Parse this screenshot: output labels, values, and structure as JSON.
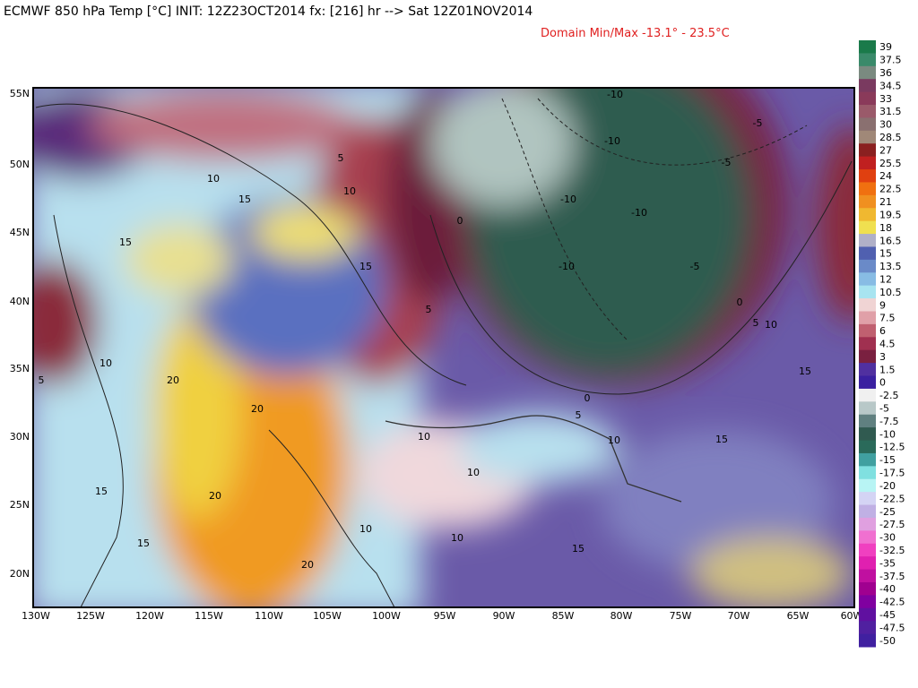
{
  "header": {
    "title": "ECMWF 850 hPa Temp [°C] INIT: 12Z23OCT2014 fx: [216] hr --> Sat 12Z01NOV2014",
    "subtitle": "Domain Min/Max -13.1° -  23.5°C"
  },
  "map": {
    "lat_labels": [
      "55N",
      "50N",
      "45N",
      "40N",
      "35N",
      "30N",
      "25N",
      "20N"
    ],
    "lon_labels": [
      "130W",
      "125W",
      "120W",
      "115W",
      "110W",
      "105W",
      "100W",
      "95W",
      "90W",
      "85W",
      "80W",
      "75W",
      "70W",
      "65W",
      "60W"
    ],
    "contour_labels": [
      "-10",
      "-5",
      "-10",
      "-5",
      "5",
      "10",
      "10",
      "15",
      "-10",
      "-10",
      "0",
      "15",
      "15",
      "-10",
      "-5",
      "5",
      "0",
      "5",
      "10",
      "10",
      "5",
      "20",
      "15",
      "0",
      "5",
      "20",
      "10",
      "10",
      "15",
      "10",
      "15",
      "20",
      "10",
      "10",
      "15",
      "15",
      "20"
    ]
  },
  "colorbar": {
    "labels": [
      "39",
      "37.5",
      "36",
      "34.5",
      "33",
      "31.5",
      "30",
      "28.5",
      "27",
      "25.5",
      "24",
      "22.5",
      "21",
      "19.5",
      "18",
      "16.5",
      "15",
      "13.5",
      "12",
      "10.5",
      "9",
      "7.5",
      "6",
      "4.5",
      "3",
      "1.5",
      "0",
      "-2.5",
      "-5",
      "-7.5",
      "-10",
      "-12.5",
      "-15",
      "-17.5",
      "-20",
      "-22.5",
      "-25",
      "-27.5",
      "-30",
      "-32.5",
      "-35",
      "-37.5",
      "-40",
      "-42.5",
      "-45",
      "-47.5",
      "-50"
    ]
  }
}
